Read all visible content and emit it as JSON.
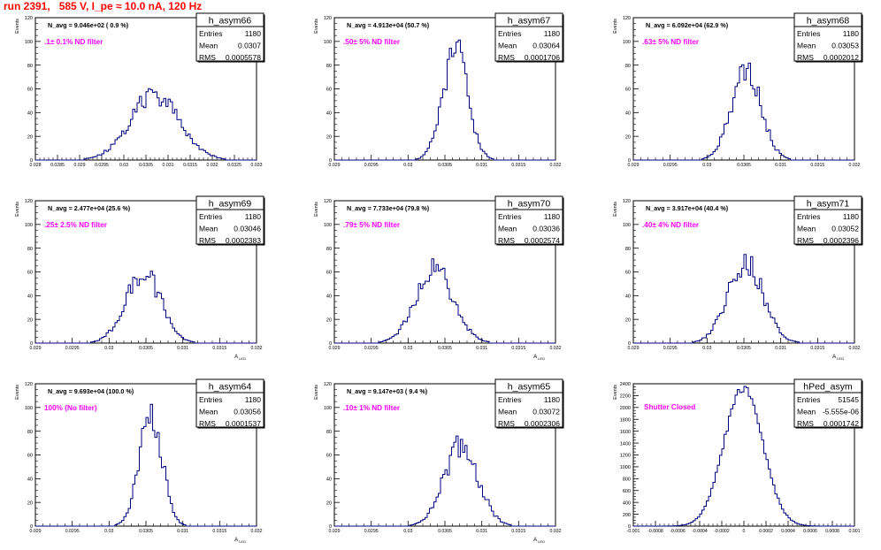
{
  "page_title": "run 2391,   585 V, I_pe ≈ 10.0 nA, 120 Hz",
  "colors": {
    "title": "#ff0000",
    "histogram": "#000080",
    "annotation": "#ff00ff",
    "axis": "#000000"
  },
  "stats_labels": {
    "entries": "Entries",
    "mean": "Mean",
    "rms": "RMS"
  },
  "chart_data": [
    {
      "type": "histogram",
      "name": "h_asym66",
      "ylabel": "Events",
      "xlabel": "",
      "navg": "N_avg = 9.046e+02 ( 0.9 %)",
      "annotation": ".1± 0.1% ND filter",
      "entries": "1180",
      "mean": "0.0307",
      "rms": "0.0005578",
      "xlim": [
        0.028,
        0.033
      ],
      "ylim": [
        0,
        120
      ],
      "xticks": [
        0.028,
        0.0285,
        0.029,
        0.0295,
        0.03,
        0.0305,
        0.031,
        0.0315,
        0.032,
        0.0325,
        0.033
      ],
      "xtick_labels": [
        "0.028",
        "0.0285",
        "0.029",
        "0.0295",
        "0.03",
        "0.0305",
        "0.031",
        "0.0315",
        "0.032",
        "0.0325",
        "0.033"
      ],
      "yticks": [
        0,
        20,
        40,
        60,
        80,
        100,
        120
      ],
      "ytick_labels": [
        "0",
        "20",
        "40",
        "60",
        "80",
        "100",
        "120"
      ],
      "peak": 55,
      "grid": false
    },
    {
      "type": "histogram",
      "name": "h_asym67",
      "ylabel": "Events",
      "xlabel": "",
      "navg": "N_avg = 4.913e+04 (50.7 %)",
      "annotation": ".50± 5% ND filter",
      "entries": "1180",
      "mean": "0.03064",
      "rms": "0.0001706",
      "xlim": [
        0.029,
        0.032
      ],
      "ylim": [
        0,
        120
      ],
      "xticks": [
        0.029,
        0.0295,
        0.03,
        0.0305,
        0.031,
        0.0315,
        0.032
      ],
      "xtick_labels": [
        "0.029",
        "0.0295",
        "0.03",
        "0.0305",
        "0.031",
        "0.0315",
        "0.032"
      ],
      "yticks": [
        0,
        20,
        40,
        60,
        80,
        100,
        120
      ],
      "ytick_labels": [
        "0",
        "20",
        "40",
        "60",
        "80",
        "100",
        "120"
      ],
      "peak": 92,
      "grid": false
    },
    {
      "type": "histogram",
      "name": "h_asym68",
      "ylabel": "Events",
      "xlabel": "",
      "navg": "N_avg = 6.092e+04 (62.9 %)",
      "annotation": ".63± 5% ND filter",
      "entries": "1180",
      "mean": "0.03053",
      "rms": "0.0002012",
      "xlim": [
        0.029,
        0.032
      ],
      "ylim": [
        0,
        120
      ],
      "xticks": [
        0.029,
        0.0295,
        0.03,
        0.0305,
        0.031,
        0.0315,
        0.032
      ],
      "xtick_labels": [
        "0.029",
        "0.0295",
        "0.03",
        "0.0305",
        "0.031",
        "0.0315",
        "0.032"
      ],
      "yticks": [
        0,
        20,
        40,
        60,
        80,
        100,
        120
      ],
      "ytick_labels": [
        "0",
        "20",
        "40",
        "60",
        "80",
        "100",
        "120"
      ],
      "peak": 75,
      "grid": false
    },
    {
      "type": "histogram",
      "name": "h_asym69",
      "ylabel": "Events",
      "xlabel": "A_{LED}",
      "navg": "N_avg = 2.477e+04 (25.6 %)",
      "annotation": ".25± 2.5% ND filter",
      "entries": "1180",
      "mean": "0.03046",
      "rms": "0.0002383",
      "xlim": [
        0.029,
        0.032
      ],
      "ylim": [
        0,
        120
      ],
      "xticks": [
        0.029,
        0.0295,
        0.03,
        0.0305,
        0.031,
        0.0315,
        0.032
      ],
      "xtick_labels": [
        "0.029",
        "0.0295",
        "0.03",
        "0.0305",
        "0.031",
        "0.0315",
        "0.032"
      ],
      "yticks": [
        0,
        20,
        40,
        60,
        80,
        100,
        120
      ],
      "ytick_labels": [
        "0",
        "20",
        "40",
        "60",
        "80",
        "100",
        "120"
      ],
      "peak": 60,
      "grid": false
    },
    {
      "type": "histogram",
      "name": "h_asym70",
      "ylabel": "Events",
      "xlabel": "A_{LED}",
      "navg": "N_avg = 7.733e+04 (79.8 %)",
      "annotation": ".79± 5% ND filter",
      "entries": "1180",
      "mean": "0.03036",
      "rms": "0.0002574",
      "xlim": [
        0.029,
        0.032
      ],
      "ylim": [
        0,
        120
      ],
      "xticks": [
        0.029,
        0.0295,
        0.03,
        0.0305,
        0.031,
        0.0315,
        0.032
      ],
      "xtick_labels": [
        "0.029",
        "0.0295",
        "0.03",
        "0.0305",
        "0.031",
        "0.0315",
        "0.032"
      ],
      "yticks": [
        0,
        20,
        40,
        60,
        80,
        100,
        120
      ],
      "ytick_labels": [
        "0",
        "20",
        "40",
        "60",
        "80",
        "100",
        "120"
      ],
      "peak": 62,
      "grid": false
    },
    {
      "type": "histogram",
      "name": "h_asym71",
      "ylabel": "Events",
      "xlabel": "A_{LED}",
      "navg": "N_avg = 3.917e+04 (40.4 %)",
      "annotation": ".40± 4% ND filter",
      "entries": "1180",
      "mean": "0.03052",
      "rms": "0.0002396",
      "xlim": [
        0.029,
        0.032
      ],
      "ylim": [
        0,
        120
      ],
      "xticks": [
        0.029,
        0.0295,
        0.03,
        0.0305,
        0.031,
        0.0315,
        0.032
      ],
      "xtick_labels": [
        "0.029",
        "0.0295",
        "0.03",
        "0.0305",
        "0.031",
        "0.0315",
        "0.032"
      ],
      "yticks": [
        0,
        20,
        40,
        60,
        80,
        100,
        120
      ],
      "ytick_labels": [
        "0",
        "20",
        "40",
        "60",
        "80",
        "100",
        "120"
      ],
      "peak": 68,
      "grid": false
    },
    {
      "type": "histogram",
      "name": "h_asym64",
      "ylabel": "Events",
      "xlabel": "A_{LED}",
      "navg": "N_avg = 9.693e+04 (100.0 %)",
      "annotation": "100% (No filter)",
      "entries": "1180",
      "mean": "0.03056",
      "rms": "0.0001537",
      "xlim": [
        0.029,
        0.032
      ],
      "ylim": [
        0,
        120
      ],
      "xticks": [
        0.029,
        0.0295,
        0.03,
        0.0305,
        0.031,
        0.0315,
        0.032
      ],
      "xtick_labels": [
        "0.029",
        "0.0295",
        "0.03",
        "0.0305",
        "0.031",
        "0.0315",
        "0.032"
      ],
      "yticks": [
        0,
        20,
        40,
        60,
        80,
        100,
        120
      ],
      "ytick_labels": [
        "0",
        "20",
        "40",
        "60",
        "80",
        "100",
        "120"
      ],
      "peak": 98,
      "grid": false
    },
    {
      "type": "histogram",
      "name": "h_asym65",
      "ylabel": "Events",
      "xlabel": "A_{LED}",
      "navg": "N_avg = 9.147e+03 ( 9.4 %)",
      "annotation": ".10± 1% ND filter",
      "entries": "1180",
      "mean": "0.03072",
      "rms": "0.0002306",
      "xlim": [
        0.029,
        0.032
      ],
      "ylim": [
        0,
        120
      ],
      "xticks": [
        0.029,
        0.0295,
        0.03,
        0.0305,
        0.031,
        0.0315,
        0.032
      ],
      "xtick_labels": [
        "0.029",
        "0.0295",
        "0.03",
        "0.0305",
        "0.031",
        "0.0315",
        "0.032"
      ],
      "yticks": [
        0,
        20,
        40,
        60,
        80,
        100,
        120
      ],
      "ytick_labels": [
        "0",
        "20",
        "40",
        "60",
        "80",
        "100",
        "120"
      ],
      "peak": 68,
      "grid": false
    },
    {
      "type": "histogram",
      "name": "hPed_asym",
      "ylabel": "Events",
      "xlabel": "",
      "navg": "",
      "annotation": "Shutter Closed",
      "entries": "51545",
      "mean": "-5.555e-06",
      "rms": "0.0001742",
      "xlim": [
        -0.001,
        0.001
      ],
      "ylim": [
        0,
        2400
      ],
      "xticks": [
        -0.001,
        -0.0008,
        -0.0006,
        -0.0004,
        -0.0002,
        0,
        0.0002,
        0.0004,
        0.0006,
        0.0008,
        0.001
      ],
      "xtick_labels": [
        "-0.001",
        "-0.0008",
        "-0.0006",
        "-0.0004",
        "-0.0002",
        "0",
        "0.0002",
        "0.0004",
        "0.0006",
        "0.0008",
        "0.001"
      ],
      "yticks": [
        0,
        200,
        400,
        600,
        800,
        1000,
        1200,
        1400,
        1600,
        1800,
        2000,
        2200,
        2400
      ],
      "ytick_labels": [
        "0",
        "200",
        "400",
        "600",
        "800",
        "1000",
        "1200",
        "1400",
        "1600",
        "1800",
        "2000",
        "2200",
        "2400"
      ],
      "peak": 2350,
      "grid": false
    }
  ]
}
